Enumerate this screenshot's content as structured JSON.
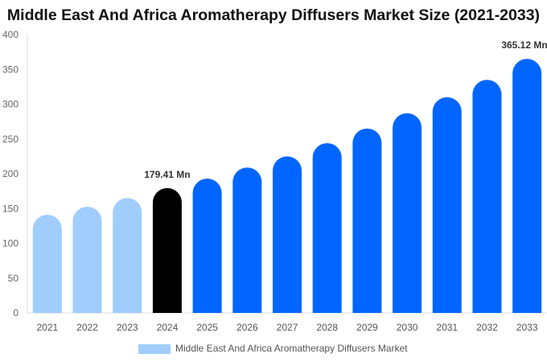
{
  "chart_data": {
    "type": "bar",
    "title": "Middle East And Africa Aromatherapy Diffusers Market Size (2021-2033)",
    "categories": [
      "2021",
      "2022",
      "2023",
      "2024",
      "2025",
      "2026",
      "2027",
      "2028",
      "2029",
      "2030",
      "2031",
      "2032",
      "2033"
    ],
    "series": [
      {
        "name": "Middle East And Africa Aromatherapy Diffusers Market",
        "values": [
          141,
          152.6,
          165,
          179.41,
          193,
          209,
          225,
          244,
          265,
          287,
          310,
          335,
          365.12
        ]
      }
    ],
    "ylim": [
      0,
      400
    ],
    "yticks": [
      0,
      50,
      100,
      150,
      200,
      250,
      300,
      350,
      400
    ],
    "annotations": [
      {
        "category": "2024",
        "label": "179.41 Mn"
      },
      {
        "category": "2033",
        "label": "365.12 Mn"
      }
    ],
    "colors": {
      "historical": "#a0cdfc",
      "base_year": "#000000",
      "forecast": "#0066ff"
    },
    "grid": false,
    "legend": "bottom-center"
  }
}
